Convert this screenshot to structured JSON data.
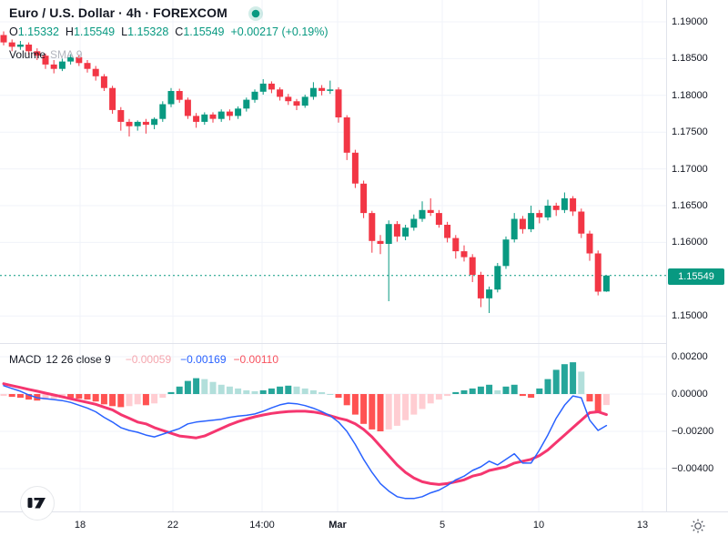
{
  "header": {
    "symbol_title": "Euro / U.S. Dollar · 4h · FOREXCOM",
    "ohlc": {
      "o_label": "O",
      "o": "1.15332",
      "h_label": "H",
      "h": "1.15549",
      "l_label": "L",
      "l": "1.15328",
      "c_label": "C",
      "c": "1.15549",
      "change": "+0.00217 (+0.19%)"
    },
    "volume": {
      "label": "Volume",
      "params": "SMA 9"
    }
  },
  "macd_row": {
    "name": "MACD",
    "params": "12 26 close 9",
    "hist_value": "−0.00059",
    "macd_value": "−0.00169",
    "signal_value": "−0.00110"
  },
  "last_price_label": "1.15549",
  "axes": {
    "price": [
      "1.19000",
      "1.18500",
      "1.18000",
      "1.17500",
      "1.17000",
      "1.16500",
      "1.16000",
      "1.15000"
    ],
    "macd": [
      "0.00200",
      "0.00000",
      "−0.00200",
      "−0.00400"
    ],
    "time": [
      "18",
      "22",
      "14:00",
      "Mar",
      "5",
      "10",
      "13"
    ]
  },
  "colors": {
    "up": "#089981",
    "down": "#F23645",
    "macd_line": "#2962FF",
    "signal_line": "#F5366F",
    "hist_grow_above": "#26A69A",
    "hist_fall_above": "#B2DFDB",
    "hist_fall_below": "#FF5252",
    "hist_grow_below": "#FFCDD2",
    "grid": "#F0F3FA",
    "separator": "#E0E3EB",
    "text": "#131722",
    "muted": "#B2B5BE",
    "last_price": "#089981"
  },
  "chart_data": [
    {
      "type": "candlestick",
      "symbol": "EUR/USD",
      "timeframe": "4h",
      "exchange": "FOREXCOM",
      "price_range_visible": [
        1.1485,
        1.1915
      ],
      "price_gridlines": [
        1.19,
        1.185,
        1.18,
        1.175,
        1.17,
        1.165,
        1.16,
        1.15
      ],
      "time_gridline_x": [
        88,
        190,
        288,
        371,
        486,
        592,
        706
      ],
      "last_close": 1.15549,
      "candles": [
        [
          1.1882,
          1.1887,
          1.1868,
          1.1872
        ],
        [
          1.1872,
          1.1876,
          1.186,
          1.1866
        ],
        [
          1.1866,
          1.1874,
          1.1862,
          1.1869
        ],
        [
          1.1869,
          1.1872,
          1.1855,
          1.186
        ],
        [
          1.186,
          1.1864,
          1.1848,
          1.1854
        ],
        [
          1.1854,
          1.1857,
          1.1836,
          1.1842
        ],
        [
          1.1842,
          1.1848,
          1.183,
          1.1836
        ],
        [
          1.1836,
          1.185,
          1.1833,
          1.1846
        ],
        [
          1.1846,
          1.1856,
          1.1842,
          1.1852
        ],
        [
          1.1852,
          1.1855,
          1.184,
          1.1844
        ],
        [
          1.1844,
          1.1848,
          1.1831,
          1.1836
        ],
        [
          1.1836,
          1.184,
          1.182,
          1.1826
        ],
        [
          1.1826,
          1.1829,
          1.1806,
          1.181
        ],
        [
          1.181,
          1.1813,
          1.1775,
          1.178
        ],
        [
          1.178,
          1.1784,
          1.1752,
          1.1764
        ],
        [
          1.1764,
          1.1768,
          1.1744,
          1.1758
        ],
        [
          1.1758,
          1.1766,
          1.1752,
          1.1764
        ],
        [
          1.1764,
          1.1768,
          1.1748,
          1.176
        ],
        [
          1.176,
          1.177,
          1.1754,
          1.1768
        ],
        [
          1.1768,
          1.1792,
          1.1764,
          1.1788
        ],
        [
          1.1788,
          1.181,
          1.1784,
          1.1806
        ],
        [
          1.1806,
          1.1809,
          1.179,
          1.1794
        ],
        [
          1.1794,
          1.1797,
          1.1768,
          1.1772
        ],
        [
          1.1772,
          1.1776,
          1.1756,
          1.1764
        ],
        [
          1.1764,
          1.1777,
          1.176,
          1.1774
        ],
        [
          1.1774,
          1.1777,
          1.1763,
          1.1768
        ],
        [
          1.1768,
          1.1781,
          1.1764,
          1.1778
        ],
        [
          1.1778,
          1.1781,
          1.1766,
          1.1772
        ],
        [
          1.1772,
          1.1785,
          1.1768,
          1.1782
        ],
        [
          1.1782,
          1.1797,
          1.1778,
          1.1794
        ],
        [
          1.1794,
          1.1808,
          1.179,
          1.1805
        ],
        [
          1.1805,
          1.1822,
          1.1801,
          1.1816
        ],
        [
          1.1816,
          1.1819,
          1.1803,
          1.1808
        ],
        [
          1.1808,
          1.1811,
          1.1793,
          1.1798
        ],
        [
          1.1798,
          1.1802,
          1.1787,
          1.1792
        ],
        [
          1.1792,
          1.1795,
          1.178,
          1.1786
        ],
        [
          1.1786,
          1.1801,
          1.1783,
          1.1798
        ],
        [
          1.1798,
          1.1818,
          1.1794,
          1.181
        ],
        [
          1.181,
          1.1814,
          1.18,
          1.1806
        ],
        [
          1.1806,
          1.182,
          1.1802,
          1.1808
        ],
        [
          1.1808,
          1.1811,
          1.1763,
          1.177
        ],
        [
          1.177,
          1.1773,
          1.1712,
          1.1722
        ],
        [
          1.1722,
          1.1726,
          1.1674,
          1.168
        ],
        [
          1.168,
          1.1684,
          1.1633,
          1.164
        ],
        [
          1.164,
          1.1643,
          1.1586,
          1.1602
        ],
        [
          1.1602,
          1.161,
          1.1584,
          1.1598
        ],
        [
          1.1598,
          1.163,
          1.152,
          1.1625
        ],
        [
          1.1625,
          1.1629,
          1.1601,
          1.1608
        ],
        [
          1.1608,
          1.1624,
          1.1603,
          1.162
        ],
        [
          1.162,
          1.1638,
          1.1616,
          1.1632
        ],
        [
          1.1632,
          1.1656,
          1.1628,
          1.1644
        ],
        [
          1.1644,
          1.166,
          1.1636,
          1.164
        ],
        [
          1.164,
          1.1644,
          1.162,
          1.1624
        ],
        [
          1.1624,
          1.1628,
          1.16,
          1.1606
        ],
        [
          1.1606,
          1.161,
          1.1578,
          1.1588
        ],
        [
          1.1588,
          1.1596,
          1.1574,
          1.158
        ],
        [
          1.158,
          1.1584,
          1.1546,
          1.1556
        ],
        [
          1.1556,
          1.156,
          1.1512,
          1.1524
        ],
        [
          1.1524,
          1.154,
          1.1504,
          1.1536
        ],
        [
          1.1536,
          1.1572,
          1.1532,
          1.1568
        ],
        [
          1.1568,
          1.1608,
          1.1564,
          1.1604
        ],
        [
          1.1604,
          1.164,
          1.16,
          1.1632
        ],
        [
          1.1632,
          1.1636,
          1.1612,
          1.1618
        ],
        [
          1.1618,
          1.165,
          1.1614,
          1.164
        ],
        [
          1.164,
          1.1644,
          1.1626,
          1.1634
        ],
        [
          1.1634,
          1.1658,
          1.163,
          1.165
        ],
        [
          1.165,
          1.1654,
          1.1636,
          1.1644
        ],
        [
          1.1644,
          1.1668,
          1.164,
          1.166
        ],
        [
          1.166,
          1.1663,
          1.1636,
          1.1642
        ],
        [
          1.1642,
          1.1646,
          1.1606,
          1.1612
        ],
        [
          1.1612,
          1.1616,
          1.1575,
          1.1585
        ],
        [
          1.1585,
          1.1589,
          1.1528,
          1.1533
        ],
        [
          1.15332,
          1.15549,
          1.15328,
          1.15549
        ]
      ]
    },
    {
      "type": "macd",
      "params": {
        "fast": 12,
        "slow": 26,
        "source": "close",
        "signal_smoothing": 9
      },
      "value_range_visible": [
        -0.006,
        0.0024
      ],
      "gridlines": [
        0.002,
        0,
        -0.002,
        -0.004
      ],
      "last_values": {
        "histogram": -0.00059,
        "macd": -0.00169,
        "signal": -0.0011
      },
      "signal": [
        0.00055,
        0.00045,
        0.00035,
        0.00025,
        0.00015,
        5e-05,
        -5e-05,
        -0.00015,
        -0.00025,
        -0.00035,
        -0.00045,
        -0.00055,
        -0.0007,
        -0.00085,
        -0.0011,
        -0.0013,
        -0.0015,
        -0.0016,
        -0.0018,
        -0.00195,
        -0.0021,
        -0.00225,
        -0.0023,
        -0.00235,
        -0.00225,
        -0.00205,
        -0.00185,
        -0.00165,
        -0.00148,
        -0.00134,
        -0.00122,
        -0.00112,
        -0.00104,
        -0.00098,
        -0.00094,
        -0.00092,
        -0.00092,
        -0.00096,
        -0.00104,
        -0.00116,
        -0.0013,
        -0.0014,
        -0.0016,
        -0.0019,
        -0.0023,
        -0.0028,
        -0.0033,
        -0.0038,
        -0.0042,
        -0.0045,
        -0.0047,
        -0.0048,
        -0.00485,
        -0.0048,
        -0.0047,
        -0.0046,
        -0.0044,
        -0.0043,
        -0.0041,
        -0.004,
        -0.0039,
        -0.0037,
        -0.0036,
        -0.0035,
        -0.0033,
        -0.003,
        -0.0026,
        -0.0022,
        -0.0018,
        -0.0014,
        -0.001,
        -0.00095,
        -0.0011
      ],
      "histogram": [
        -0.0001,
        -0.00015,
        -0.0002,
        -0.0003,
        -0.00035,
        -0.0003,
        -0.00025,
        -0.0002,
        -0.0002,
        -0.00025,
        -0.0003,
        -0.0004,
        -0.00055,
        -0.00065,
        -0.0007,
        -0.00065,
        -0.00055,
        -0.0006,
        -0.0005,
        -0.0002,
        0.0001,
        0.0004,
        0.0007,
        0.00085,
        0.0008,
        0.00065,
        0.0005,
        0.0004,
        0.0003,
        0.0002,
        0.00015,
        0.0002,
        0.0003,
        0.0004,
        0.00045,
        0.0004,
        0.0003,
        0.0002,
        0.0001,
        0.0,
        -0.0002,
        -0.0006,
        -0.0011,
        -0.0016,
        -0.0019,
        -0.002,
        -0.0019,
        -0.0017,
        -0.0014,
        -0.0011,
        -0.0008,
        -0.0005,
        -0.0003,
        -0.0001,
        0.0001,
        0.0002,
        0.0003,
        0.0004,
        0.0005,
        0.0002,
        0.0004,
        0.0005,
        -0.0001,
        -0.0002,
        0.0003,
        0.0008,
        0.0013,
        0.0016,
        0.0017,
        0.0012,
        -0.0004,
        -0.001,
        -0.00059
      ]
    }
  ]
}
